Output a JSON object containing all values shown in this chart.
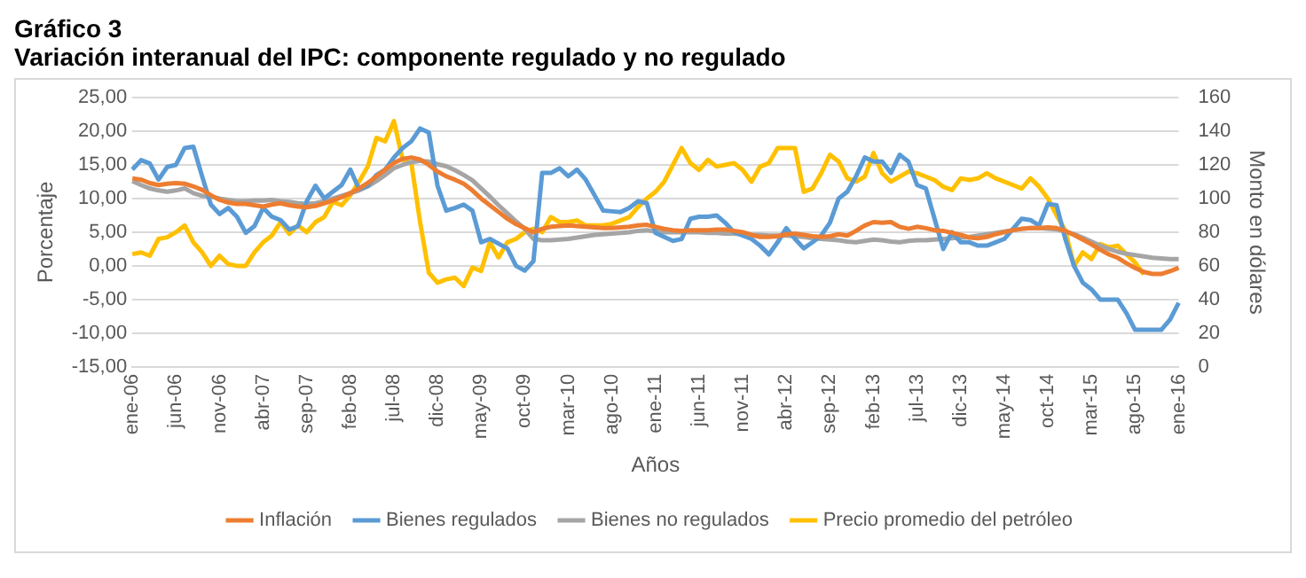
{
  "chart_data": {
    "type": "line",
    "title": "Gráfico 3",
    "subtitle": "Variación interanual del IPC: componente regulado y no regulado",
    "xlabel": "Años",
    "ylabel": "Porcentaje",
    "y2label": "Monto en dólares",
    "categories": [
      "ene-06",
      null,
      null,
      null,
      null,
      "jun-06",
      null,
      null,
      null,
      null,
      "nov-06",
      null,
      null,
      null,
      null,
      "abr-07",
      null,
      null,
      null,
      null,
      "sep-07",
      null,
      null,
      null,
      null,
      "feb-08",
      null,
      null,
      null,
      null,
      "jul-08",
      null,
      null,
      null,
      null,
      "dic-08",
      null,
      null,
      null,
      null,
      "may-09",
      null,
      null,
      null,
      null,
      "oct-09",
      null,
      null,
      null,
      null,
      "mar-10",
      null,
      null,
      null,
      null,
      "ago-10",
      null,
      null,
      null,
      null,
      "ene-11",
      null,
      null,
      null,
      null,
      "jun-11",
      null,
      null,
      null,
      null,
      "nov-11",
      null,
      null,
      null,
      null,
      "abr-12",
      null,
      null,
      null,
      null,
      "sep-12",
      null,
      null,
      null,
      null,
      "feb-13",
      null,
      null,
      null,
      null,
      "jul-13",
      null,
      null,
      null,
      null,
      "dic-13",
      null,
      null,
      null,
      null,
      "may-14",
      null,
      null,
      null,
      null,
      "oct-14",
      null,
      null,
      null,
      null,
      "mar-15",
      null,
      null,
      null,
      null,
      "ago-15",
      null,
      null,
      null,
      null,
      "ene-16"
    ],
    "series": [
      {
        "name": "Inflación",
        "color": "#ed7d31",
        "values": [
          13,
          12.8,
          12.3,
          12,
          12.2,
          12.3,
          12.2,
          11.8,
          11.3,
          10.5,
          9.8,
          9.4,
          9.2,
          9.2,
          9,
          8.8,
          9.1,
          9.3,
          9,
          8.8,
          8.7,
          8.9,
          9.3,
          9.7,
          10.2,
          10.8,
          11.5,
          12.3,
          13.3,
          14.3,
          15.3,
          15.9,
          16.1,
          15.8,
          15,
          14,
          13.3,
          12.8,
          12.2,
          11.2,
          10,
          9,
          8,
          7,
          6.2,
          5.6,
          5,
          5.5,
          5.8,
          5.9,
          6,
          5.9,
          5.8,
          5.7,
          5.6,
          5.6,
          5.7,
          5.8,
          6,
          6.1,
          5.8,
          5.5,
          5.3,
          5.2,
          5.3,
          5.3,
          5.3,
          5.4,
          5.4,
          5.2,
          5,
          4.6,
          4.3,
          4.3,
          4.4,
          4.7,
          4.8,
          4.6,
          4.4,
          4.3,
          4.4,
          4.7,
          4.5,
          5.2,
          6,
          6.5,
          6.4,
          6.5,
          5.8,
          5.5,
          5.8,
          5.6,
          5.3,
          5.2,
          4.9,
          4.6,
          4.2,
          4.1,
          4.3,
          4.7,
          5,
          5.3,
          5.5,
          5.6,
          5.6,
          5.7,
          5.6,
          5.2,
          4.6,
          3.9,
          3.2,
          2.4,
          1.7,
          1.2,
          0.4,
          -0.3,
          -0.9,
          -1.2,
          -1.2,
          -0.8,
          -0.3
        ]
      },
      {
        "name": "Bienes regulados",
        "color": "#5b9bd5",
        "values": [
          14.3,
          15.7,
          15.2,
          12.8,
          14.7,
          15,
          17.5,
          17.7,
          13.3,
          9.1,
          7.7,
          8.6,
          7.3,
          4.9,
          5.9,
          8.6,
          7.3,
          6.8,
          5.4,
          5.9,
          9.6,
          11.9,
          10,
          11,
          12,
          14.3,
          11.4,
          11.9,
          13.5,
          14.3,
          16.1,
          17.5,
          18.5,
          20.4,
          19.8,
          11.9,
          8.2,
          8.6,
          9.1,
          8.2,
          3.5,
          4,
          3.3,
          2.6,
          0,
          -0.7,
          0.7,
          13.8,
          13.8,
          14.5,
          13.3,
          14.3,
          12.8,
          10.5,
          8.2,
          8.1,
          8,
          8.6,
          9.6,
          9.3,
          4.9,
          4.3,
          3.7,
          4,
          7,
          7.3,
          7.3,
          7.5,
          6.4,
          5,
          4.5,
          4,
          3,
          1.7,
          3.5,
          5.6,
          4,
          2.6,
          3.5,
          4.5,
          6.4,
          10,
          11,
          13.3,
          16.1,
          15.5,
          15.5,
          13.8,
          16.5,
          15.5,
          12,
          11.5,
          7,
          2.5,
          5,
          3.5,
          3.5,
          3,
          3,
          3.5,
          4,
          5.5,
          7,
          6.8,
          6,
          9.2,
          9,
          4,
          0,
          -2.5,
          -3.5,
          -5,
          -5,
          -5,
          -7,
          -9.5,
          -9.5,
          -9.5,
          -9.5,
          -8,
          -5.5
        ]
      },
      {
        "name": "Bienes no regulados",
        "color": "#a5a5a5",
        "values": [
          12.6,
          12,
          11.5,
          11.2,
          11,
          11.2,
          11.5,
          10.8,
          10.4,
          10.3,
          10,
          9.8,
          9.6,
          9.6,
          9.7,
          9.7,
          9.8,
          9.6,
          9.5,
          9.3,
          9.2,
          9.3,
          9.6,
          10,
          10.4,
          10.8,
          11.2,
          11.8,
          12.6,
          13.5,
          14.5,
          15,
          15.4,
          15.6,
          15.5,
          15.1,
          14.8,
          14.2,
          13.5,
          12.7,
          11.5,
          10.3,
          9,
          7.8,
          6.6,
          5.5,
          4,
          3.8,
          3.8,
          3.9,
          4,
          4.2,
          4.4,
          4.6,
          4.7,
          4.8,
          4.9,
          5,
          5.2,
          5.3,
          5.1,
          5,
          5,
          5,
          5,
          5,
          4.9,
          4.9,
          4.8,
          4.8,
          4.7,
          4.6,
          4.6,
          4.5,
          4.5,
          4.5,
          4.4,
          4.3,
          4.1,
          4,
          3.9,
          3.8,
          3.6,
          3.5,
          3.7,
          3.9,
          3.8,
          3.6,
          3.5,
          3.7,
          3.8,
          3.8,
          3.9,
          4,
          4.1,
          4.2,
          4.3,
          4.5,
          4.7,
          4.9,
          5.1,
          5.3,
          5.5,
          5.6,
          5.6,
          5.5,
          5.4,
          5.1,
          4.7,
          4.2,
          3.6,
          3,
          2.5,
          2.1,
          1.8,
          1.6,
          1.4,
          1.2,
          1.1,
          1,
          1
        ]
      },
      {
        "name": "Precio promedio del petróleo",
        "color": "#ffc000",
        "axis": "y2",
        "values": [
          67,
          68,
          66,
          76,
          77,
          80,
          84,
          74,
          68,
          60,
          66,
          61,
          60,
          60,
          68,
          74,
          78,
          86,
          79,
          84,
          80,
          86,
          89,
          98,
          96,
          102,
          110,
          119,
          136,
          134,
          146,
          123,
          121,
          86,
          56,
          50,
          52,
          53,
          48,
          59,
          57,
          74,
          65,
          74,
          76,
          80,
          82,
          80,
          89,
          86,
          86,
          87,
          84,
          84,
          84,
          85,
          87,
          89,
          95,
          100,
          104,
          110,
          120,
          130,
          121,
          117,
          123,
          119,
          120,
          121,
          117,
          110,
          119,
          121,
          130,
          130,
          130,
          104,
          106,
          115,
          126,
          122,
          112,
          110,
          113,
          127,
          115,
          110,
          113,
          116,
          115,
          113,
          111,
          107,
          105,
          112,
          111,
          112,
          115,
          112,
          110,
          108,
          106,
          112,
          107,
          100,
          90,
          81,
          60,
          68,
          64,
          73,
          71,
          72,
          67,
          62,
          55,
          null,
          null,
          null,
          null
        ]
      }
    ],
    "ylim": [
      -15,
      25
    ],
    "yticks": [
      {
        "value": -15,
        "label": "-15,00"
      },
      {
        "value": -10,
        "label": "-10,00"
      },
      {
        "value": -5,
        "label": "-5,00"
      },
      {
        "value": 0,
        "label": "0,00"
      },
      {
        "value": 5,
        "label": "5,00"
      },
      {
        "value": 10,
        "label": "10,00"
      },
      {
        "value": 15,
        "label": "15,00"
      },
      {
        "value": 20,
        "label": "20,00"
      },
      {
        "value": 25,
        "label": "25,00"
      }
    ],
    "y2lim": [
      0,
      160
    ],
    "y2ticks": [
      0,
      20,
      40,
      60,
      80,
      100,
      120,
      140,
      160
    ],
    "grid": "y",
    "legend": "bottom"
  }
}
